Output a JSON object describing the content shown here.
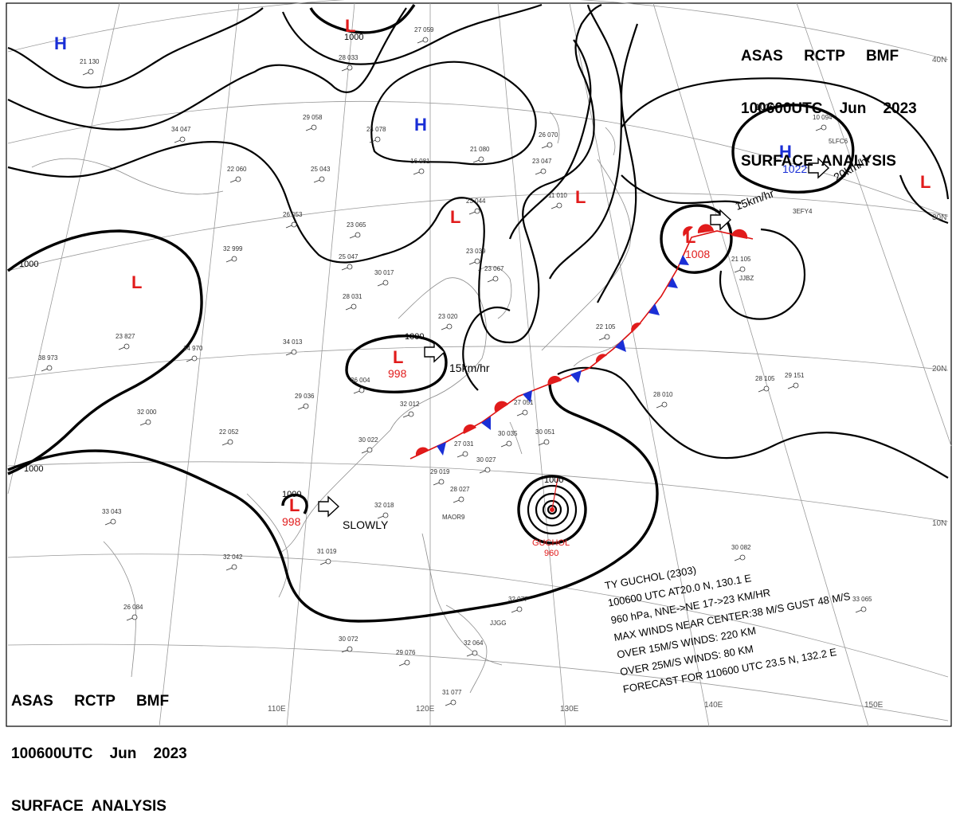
{
  "header": {
    "line1": "ASAS     RCTP     BMF",
    "line2": "100600UTC    Jun    2023",
    "line3": "SURFACE  ANALYSIS"
  },
  "pressure_centers": [
    {
      "type": "H",
      "value": ""
    },
    {
      "type": "H",
      "value": ""
    },
    {
      "type": "H",
      "value": "1022"
    },
    {
      "type": "L",
      "value": ""
    },
    {
      "type": "L",
      "value": ""
    },
    {
      "type": "L",
      "value": ""
    },
    {
      "type": "L",
      "value": ""
    },
    {
      "type": "L",
      "value": ""
    },
    {
      "type": "L",
      "value": "998"
    },
    {
      "type": "L",
      "value": "998"
    },
    {
      "type": "L",
      "value": "1008"
    }
  ],
  "isobar_labels": [
    "1000",
    "1000",
    "1000",
    "1000",
    "1000",
    "1000",
    "1020"
  ],
  "motions": {
    "low_center": "15km/hr",
    "low_sw": "SLOWLY",
    "high_ne": "20km/hr",
    "low_ne": "15km/hr"
  },
  "typhoon": {
    "name": "GUCHOL",
    "pressure": "960",
    "info": [
      "TY  GUCHOL  (2303)",
      "100600 UTC  AT20.0 N, 130.1 E",
      "960 hPa, NNE->NE  17->23 KM/HR",
      "MAX WINDS NEAR CENTER:38 M/S GUST 48 M/S",
      "OVER 15M/S WINDS: 220 KM",
      "OVER 25M/S WINDS: 80 KM",
      "FORECAST FOR 110600 UTC 23.5 N, 132.2 E"
    ]
  },
  "lon_labels": [
    "110E",
    "120E",
    "130E",
    "140E",
    "150E"
  ],
  "lat_labels": [
    "40N",
    "30N",
    "20N",
    "10N"
  ],
  "stations": [
    "21 130",
    "27 059",
    "28 033",
    "29 058",
    "24 078",
    "16 081",
    "21 080",
    "23 047",
    "34 047",
    "22 060",
    "25 043",
    "26 053",
    "23 065",
    "25 047",
    "32 999",
    "30 017",
    "28 031",
    "23 020",
    "34 013",
    "14 970",
    "23 827",
    "38 973",
    "36 004",
    "29 036",
    "32 012",
    "22 052",
    "32 000",
    "30 022",
    "27 051",
    "30 035",
    "30 051",
    "27 031",
    "29 019",
    "30 027",
    "28 027",
    "32 018",
    "33 043",
    "31 019",
    "32 042",
    "26 084",
    "30 072",
    "29 076",
    "32 064",
    "31 077",
    "28 010",
    "29 151",
    "30 082",
    "10 094",
    "23 044",
    "23 039",
    "23 067",
    "26 070",
    "11 010",
    "21 105",
    "22 105",
    "28 105",
    "32 077",
    "33 065"
  ],
  "station_codes": [
    "MAOR9",
    "JJGG",
    "JJBZ",
    "3EFY4",
    "5LFC6"
  ]
}
